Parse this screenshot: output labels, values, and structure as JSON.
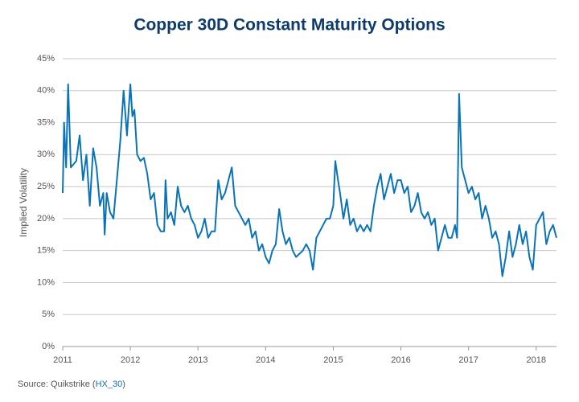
{
  "chart_data": {
    "type": "line",
    "title": "Copper 30D Constant Maturity Options",
    "y_label": "Implied Volatility",
    "source": {
      "prefix": "Source: Quikstrike (",
      "link": "HX_30",
      "suffix": ")"
    },
    "x": [
      2011.0,
      2011.02,
      2011.05,
      2011.08,
      2011.12,
      2011.2,
      2011.25,
      2011.3,
      2011.35,
      2011.4,
      2011.45,
      2011.5,
      2011.55,
      2011.6,
      2011.62,
      2011.65,
      2011.7,
      2011.75,
      2011.8,
      2011.85,
      2011.9,
      2011.95,
      2012.0,
      2012.03,
      2012.06,
      2012.1,
      2012.15,
      2012.2,
      2012.25,
      2012.3,
      2012.35,
      2012.4,
      2012.45,
      2012.5,
      2012.52,
      2012.55,
      2012.6,
      2012.65,
      2012.7,
      2012.75,
      2012.8,
      2012.85,
      2012.9,
      2012.95,
      2013.0,
      2013.05,
      2013.1,
      2013.15,
      2013.2,
      2013.25,
      2013.3,
      2013.35,
      2013.4,
      2013.45,
      2013.5,
      2013.55,
      2013.6,
      2013.65,
      2013.7,
      2013.75,
      2013.8,
      2013.85,
      2013.9,
      2013.95,
      2014.0,
      2014.05,
      2014.1,
      2014.15,
      2014.2,
      2014.25,
      2014.3,
      2014.35,
      2014.4,
      2014.45,
      2014.5,
      2014.55,
      2014.6,
      2014.65,
      2014.7,
      2014.75,
      2014.8,
      2014.85,
      2014.9,
      2014.95,
      2015.0,
      2015.03,
      2015.07,
      2015.1,
      2015.15,
      2015.2,
      2015.25,
      2015.3,
      2015.35,
      2015.4,
      2015.45,
      2015.5,
      2015.55,
      2015.6,
      2015.65,
      2015.7,
      2015.75,
      2015.8,
      2015.85,
      2015.9,
      2015.95,
      2016.0,
      2016.05,
      2016.1,
      2016.15,
      2016.2,
      2016.25,
      2016.3,
      2016.35,
      2016.4,
      2016.45,
      2016.5,
      2016.55,
      2016.6,
      2016.65,
      2016.7,
      2016.75,
      2016.8,
      2016.83,
      2016.86,
      2016.9,
      2016.95,
      2017.0,
      2017.05,
      2017.1,
      2017.15,
      2017.2,
      2017.25,
      2017.3,
      2017.35,
      2017.4,
      2017.45,
      2017.5,
      2017.55,
      2017.6,
      2017.65,
      2017.7,
      2017.75,
      2017.8,
      2017.85,
      2017.9,
      2017.95,
      2018.0,
      2018.05,
      2018.1,
      2018.15,
      2018.2,
      2018.25,
      2018.3
    ],
    "series": [
      {
        "color": "#0a73b8",
        "values": [
          24,
          35,
          28,
          41,
          28,
          29,
          33,
          26,
          30,
          22,
          31,
          28,
          22,
          24,
          17.5,
          24,
          21,
          20,
          26,
          32,
          40,
          33,
          41,
          36,
          37,
          30,
          29,
          29.5,
          27,
          23,
          24,
          19,
          18,
          18,
          26,
          20,
          21,
          19,
          25,
          22,
          21,
          22,
          20,
          19,
          17,
          18,
          20,
          17,
          18,
          18,
          26,
          23,
          24,
          26,
          28,
          22,
          21,
          20,
          19,
          20,
          17,
          18,
          15,
          16,
          14,
          13,
          15,
          16,
          21.5,
          18,
          16,
          17,
          15,
          14,
          14.5,
          15,
          16,
          15,
          12,
          17,
          18,
          19,
          20,
          20,
          22,
          29,
          26,
          24,
          20,
          23,
          19,
          20,
          18,
          19,
          18,
          19,
          18,
          22,
          25,
          27,
          23,
          25,
          27,
          24,
          26,
          26,
          24,
          25,
          21,
          22,
          24,
          21,
          20,
          21,
          19,
          20,
          15,
          17,
          19,
          17,
          17,
          19,
          17,
          39.5,
          28,
          26,
          24,
          25,
          23,
          24,
          20,
          22,
          20,
          17,
          18,
          16,
          11,
          14,
          18,
          14,
          16,
          19,
          16,
          18,
          14,
          12,
          19,
          20,
          21,
          16,
          18,
          19,
          17
        ]
      }
    ],
    "xlim": [
      2011,
      2018.3
    ],
    "xticks": [
      2011,
      2012,
      2013,
      2014,
      2015,
      2016,
      2017,
      2018
    ],
    "ylim": [
      0,
      45
    ],
    "yticks": [
      {
        "value": 0,
        "label": "0%"
      },
      {
        "value": 5,
        "label": "5%"
      },
      {
        "value": 10,
        "label": "10%"
      },
      {
        "value": 15,
        "label": "15%"
      },
      {
        "value": 20,
        "label": "20%"
      },
      {
        "value": 25,
        "label": "25%"
      },
      {
        "value": 30,
        "label": "30%"
      },
      {
        "value": 35,
        "label": "35%"
      },
      {
        "value": 40,
        "label": "40%"
      },
      {
        "value": 45,
        "label": "45%"
      }
    ],
    "grid": true
  }
}
